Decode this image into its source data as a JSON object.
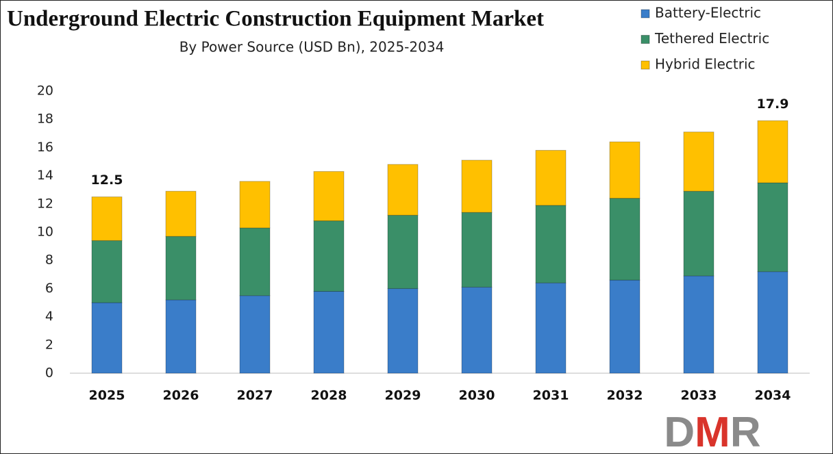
{
  "chart_data": {
    "type": "stacked_bar",
    "title": "Underground Electric Construction Equipment Market",
    "subtitle": "By Power Source (USD Bn), 2025-2034",
    "categories": [
      "2025",
      "2026",
      "2027",
      "2028",
      "2029",
      "2030",
      "2031",
      "2032",
      "2033",
      "2034"
    ],
    "series": [
      {
        "name": "Battery-Electric",
        "color": "#3a7dc9",
        "values": [
          5.0,
          5.2,
          5.5,
          5.8,
          6.0,
          6.1,
          6.4,
          6.6,
          6.9,
          7.2
        ]
      },
      {
        "name": "Tethered Electric",
        "color": "#3a8f68",
        "values": [
          4.4,
          4.5,
          4.8,
          5.0,
          5.2,
          5.3,
          5.5,
          5.8,
          6.0,
          6.3
        ]
      },
      {
        "name": "Hybrid Electric",
        "color": "#ffc000",
        "values": [
          3.1,
          3.2,
          3.3,
          3.5,
          3.6,
          3.7,
          3.9,
          4.0,
          4.2,
          4.4
        ]
      }
    ],
    "totals": [
      12.5,
      null,
      null,
      null,
      null,
      null,
      null,
      null,
      null,
      17.9
    ],
    "ylim": [
      0,
      20
    ],
    "yticks": [
      0,
      2,
      4,
      6,
      8,
      10,
      12,
      14,
      16,
      18,
      20
    ],
    "grid": false,
    "legend": "top-right"
  },
  "logo": [
    "D",
    "M",
    "R"
  ]
}
